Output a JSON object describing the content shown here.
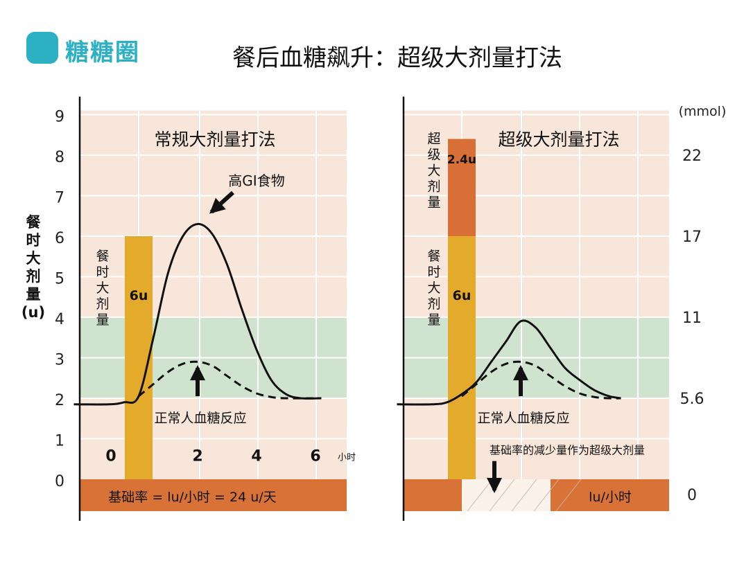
{
  "brand": {
    "name": "糖糖圈"
  },
  "title": "餐后血糖飙升：超级大剂量打法",
  "colors": {
    "grid_bg": "#f8e6da",
    "grid_line": "#ffffff",
    "target_band": "#cfe3cf",
    "bolus_yellow": "#e3aa2c",
    "super_orange": "#d86f36",
    "basal_orange": "#d87236",
    "axis": "#111111",
    "brand": "#2bb0c4"
  },
  "y_axis": {
    "label": "餐时大剂量(u)",
    "label_chars": [
      "餐",
      "时",
      "大",
      "剂",
      "量",
      "(u)"
    ],
    "ticks": [
      "0",
      "1",
      "2",
      "3",
      "4",
      "5",
      "6",
      "7",
      "8",
      "9"
    ]
  },
  "right_axis": {
    "unit": "(mmol)",
    "ticks": [
      {
        "at": 0,
        "label": "0"
      },
      {
        "at": 2,
        "label": "5.6"
      },
      {
        "at": 4,
        "label": "11"
      },
      {
        "at": 6,
        "label": "17"
      },
      {
        "at": 8,
        "label": "22"
      }
    ]
  },
  "chart_data": [
    {
      "type": "line",
      "title": "常规大剂量打法",
      "ylim": [
        0,
        9
      ],
      "x_ticks": [
        "0",
        "2",
        "4",
        "6"
      ],
      "x_unit": "小时",
      "target_band": [
        2,
        4
      ],
      "bolus": {
        "label": "餐时大剂量",
        "amount_label": "6u",
        "value": 6
      },
      "basal": {
        "label": "基础率 = lu/小时 = 24 u/天"
      },
      "series": [
        {
          "style": "solid",
          "points": [
            [
              -2.2,
              1.85
            ],
            [
              -1,
              1.85
            ],
            [
              -0.5,
              1.9
            ],
            [
              0,
              2.05
            ],
            [
              0.5,
              3.5
            ],
            [
              1,
              5.1
            ],
            [
              1.5,
              6.0
            ],
            [
              2,
              6.3
            ],
            [
              2.5,
              6.05
            ],
            [
              3,
              5.3
            ],
            [
              3.5,
              4.2
            ],
            [
              4,
              3.2
            ],
            [
              4.5,
              2.45
            ],
            [
              5,
              2.1
            ],
            [
              5.5,
              2.0
            ],
            [
              6.2,
              2.0
            ]
          ]
        },
        {
          "style": "dashed",
          "points": [
            [
              0,
              2.05
            ],
            [
              0.5,
              2.35
            ],
            [
              1,
              2.65
            ],
            [
              1.5,
              2.85
            ],
            [
              2,
              2.9
            ],
            [
              2.5,
              2.8
            ],
            [
              3,
              2.55
            ],
            [
              3.5,
              2.3
            ],
            [
              4,
              2.12
            ],
            [
              4.5,
              2.03
            ],
            [
              5,
              2.0
            ],
            [
              6.2,
              2.0
            ]
          ]
        }
      ],
      "annotations": [
        {
          "text": "高GI食物",
          "points_to": [
            2,
            6.3
          ]
        },
        {
          "text": "正常人血糖反应",
          "points_to": [
            2,
            2.9
          ]
        }
      ]
    },
    {
      "type": "line",
      "title": "超级大剂量打法",
      "ylim": [
        0,
        9
      ],
      "target_band": [
        2,
        4
      ],
      "bolus": {
        "label": "餐时大剂量",
        "amount_label": "6u",
        "value": 6
      },
      "super_bolus": {
        "label": "超级大剂量",
        "amount_label": "2.4u",
        "value": 2.4
      },
      "basal": {
        "label": "lu/小时"
      },
      "series": [
        {
          "style": "solid",
          "points": [
            [
              -2.2,
              1.85
            ],
            [
              -1,
              1.85
            ],
            [
              -0.5,
              1.9
            ],
            [
              0,
              2.1
            ],
            [
              0.5,
              2.4
            ],
            [
              1,
              2.9
            ],
            [
              1.5,
              3.4
            ],
            [
              2,
              3.9
            ],
            [
              2.5,
              3.75
            ],
            [
              3,
              3.25
            ],
            [
              3.5,
              2.75
            ],
            [
              4,
              2.45
            ],
            [
              4.5,
              2.2
            ],
            [
              5,
              2.05
            ],
            [
              5.4,
              2.0
            ]
          ]
        },
        {
          "style": "dashed",
          "points": [
            [
              0,
              2.05
            ],
            [
              0.5,
              2.35
            ],
            [
              1,
              2.65
            ],
            [
              1.5,
              2.85
            ],
            [
              2,
              2.9
            ],
            [
              2.5,
              2.8
            ],
            [
              3,
              2.55
            ],
            [
              3.5,
              2.3
            ],
            [
              4,
              2.12
            ],
            [
              4.5,
              2.03
            ],
            [
              5,
              2.0
            ],
            [
              5.4,
              2.0
            ]
          ]
        }
      ],
      "annotations": [
        {
          "text": "正常人血糖反应",
          "points_to": [
            2,
            2.9
          ]
        },
        {
          "text": "基础率的减少量作为超级大剂量"
        }
      ]
    }
  ]
}
